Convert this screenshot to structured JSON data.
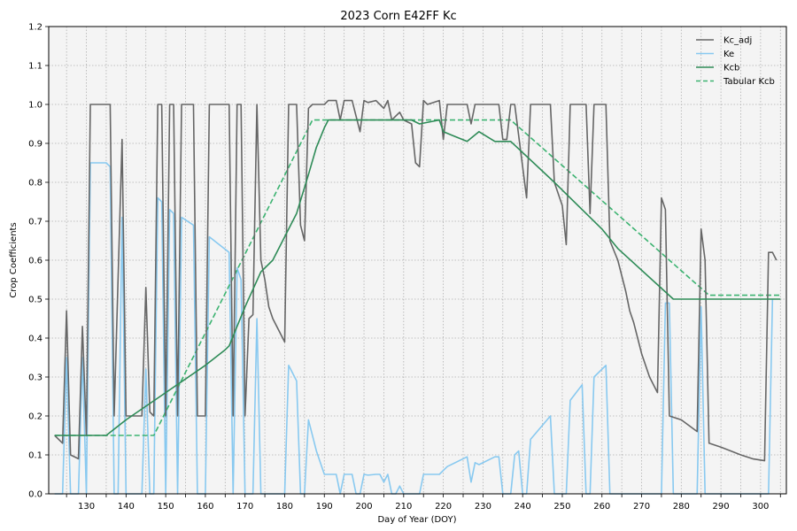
{
  "chart_data": {
    "type": "line",
    "title": "2023 Corn E42FF Kc",
    "xlabel": "Day of Year (DOY)",
    "ylabel": "Crop Coefficients",
    "xlim": [
      120.5,
      306.5
    ],
    "ylim": [
      0.0,
      1.2
    ],
    "xticks": [
      130,
      140,
      150,
      160,
      170,
      180,
      190,
      200,
      210,
      220,
      230,
      240,
      250,
      260,
      270,
      280,
      290,
      300
    ],
    "xticks_minor": [
      125,
      135,
      145,
      155,
      165,
      175,
      185,
      195,
      205,
      215,
      225,
      235,
      245,
      255,
      265,
      275,
      285,
      295,
      305
    ],
    "yticks": [
      0.0,
      0.1,
      0.2,
      0.3,
      0.4,
      0.5,
      0.6,
      0.7,
      0.8,
      0.9,
      1.0,
      1.1,
      1.2
    ],
    "ytick_labels": [
      "0.0",
      "0.1",
      "0.2",
      "0.3",
      "0.4",
      "0.5",
      "0.6",
      "0.7",
      "0.8",
      "0.9",
      "1.0",
      "1.1",
      "1.2"
    ],
    "grid": true,
    "legend_position": "top-right",
    "series": [
      {
        "name": "Kc_adj",
        "color": "#666666",
        "dash": "solid",
        "points": [
          [
            122,
            0.15
          ],
          [
            124,
            0.13
          ],
          [
            125,
            0.47
          ],
          [
            126,
            0.1
          ],
          [
            128,
            0.09
          ],
          [
            129,
            0.43
          ],
          [
            130,
            0.15
          ],
          [
            131,
            1.0
          ],
          [
            136,
            1.0
          ],
          [
            137,
            0.2
          ],
          [
            139,
            0.91
          ],
          [
            140,
            0.2
          ],
          [
            144,
            0.2
          ],
          [
            145,
            0.53
          ],
          [
            146,
            0.21
          ],
          [
            147,
            0.2
          ],
          [
            148,
            1.0
          ],
          [
            149,
            1.0
          ],
          [
            150,
            0.2
          ],
          [
            151,
            1.0
          ],
          [
            152,
            1.0
          ],
          [
            153,
            0.2
          ],
          [
            154,
            1.0
          ],
          [
            157,
            1.0
          ],
          [
            158,
            0.2
          ],
          [
            160,
            0.2
          ],
          [
            161,
            1.0
          ],
          [
            166,
            1.0
          ],
          [
            167,
            0.2
          ],
          [
            168,
            1.0
          ],
          [
            169,
            1.0
          ],
          [
            170,
            0.2
          ],
          [
            171,
            0.45
          ],
          [
            172,
            0.46
          ],
          [
            173,
            1.0
          ],
          [
            174,
            0.6
          ],
          [
            175,
            0.55
          ],
          [
            176,
            0.48
          ],
          [
            177,
            0.45
          ],
          [
            180,
            0.39
          ],
          [
            181,
            1.0
          ],
          [
            183,
            1.0
          ],
          [
            184,
            0.69
          ],
          [
            185,
            0.65
          ],
          [
            186,
            0.99
          ],
          [
            187,
            1.0
          ],
          [
            190,
            1.0
          ],
          [
            191,
            1.01
          ],
          [
            193,
            1.01
          ],
          [
            194,
            0.96
          ],
          [
            195,
            1.01
          ],
          [
            197,
            1.01
          ],
          [
            198,
            0.97
          ],
          [
            199,
            0.93
          ],
          [
            200,
            1.01
          ],
          [
            201,
            1.005
          ],
          [
            203,
            1.01
          ],
          [
            205,
            0.99
          ],
          [
            206,
            1.01
          ],
          [
            207,
            0.96
          ],
          [
            209,
            0.98
          ],
          [
            210,
            0.96
          ],
          [
            212,
            0.95
          ],
          [
            213,
            0.85
          ],
          [
            214,
            0.84
          ],
          [
            215,
            1.01
          ],
          [
            216,
            1.0
          ],
          [
            219,
            1.01
          ],
          [
            220,
            0.91
          ],
          [
            221,
            1.0
          ],
          [
            226,
            1.0
          ],
          [
            227,
            0.95
          ],
          [
            228,
            1.0
          ],
          [
            234,
            1.0
          ],
          [
            235,
            0.91
          ],
          [
            236,
            0.91
          ],
          [
            237,
            1.0
          ],
          [
            238,
            1.0
          ],
          [
            240,
            0.84
          ],
          [
            241,
            0.76
          ],
          [
            242,
            1.0
          ],
          [
            247,
            1.0
          ],
          [
            248,
            0.8
          ],
          [
            250,
            0.74
          ],
          [
            251,
            0.64
          ],
          [
            252,
            1.0
          ],
          [
            256,
            1.0
          ],
          [
            257,
            0.72
          ],
          [
            258,
            1.0
          ],
          [
            261,
            1.0
          ],
          [
            262,
            0.65
          ],
          [
            264,
            0.6
          ],
          [
            266,
            0.52
          ],
          [
            267,
            0.47
          ],
          [
            268,
            0.44
          ],
          [
            270,
            0.36
          ],
          [
            272,
            0.3
          ],
          [
            274,
            0.26
          ],
          [
            275,
            0.76
          ],
          [
            276,
            0.73
          ],
          [
            277,
            0.2
          ],
          [
            280,
            0.19
          ],
          [
            284,
            0.16
          ],
          [
            285,
            0.68
          ],
          [
            286,
            0.6
          ],
          [
            287,
            0.13
          ],
          [
            290,
            0.12
          ],
          [
            295,
            0.1
          ],
          [
            298,
            0.09
          ],
          [
            301,
            0.085
          ],
          [
            302,
            0.62
          ],
          [
            303,
            0.62
          ],
          [
            304,
            0.6
          ]
        ]
      },
      {
        "name": "Ke",
        "color": "#88c9f0",
        "dash": "solid",
        "points": [
          [
            122,
            0.0
          ],
          [
            124,
            0.0
          ],
          [
            125,
            0.35
          ],
          [
            126,
            0.0
          ],
          [
            128,
            0.0
          ],
          [
            129,
            0.35
          ],
          [
            130,
            0.0
          ],
          [
            131,
            0.85
          ],
          [
            135,
            0.85
          ],
          [
            136,
            0.84
          ],
          [
            137,
            0.0
          ],
          [
            138,
            0.0
          ],
          [
            139,
            0.71
          ],
          [
            140,
            0.0
          ],
          [
            144,
            0.0
          ],
          [
            145,
            0.32
          ],
          [
            146,
            0.0
          ],
          [
            147,
            0.0
          ],
          [
            148,
            0.76
          ],
          [
            149,
            0.75
          ],
          [
            150,
            0.0
          ],
          [
            151,
            0.73
          ],
          [
            152,
            0.72
          ],
          [
            153,
            0.0
          ],
          [
            154,
            0.71
          ],
          [
            157,
            0.69
          ],
          [
            158,
            0.0
          ],
          [
            160,
            0.0
          ],
          [
            161,
            0.66
          ],
          [
            166,
            0.62
          ],
          [
            167,
            0.0
          ],
          [
            168,
            0.58
          ],
          [
            169,
            0.55
          ],
          [
            170,
            0.0
          ],
          [
            172,
            0.0
          ],
          [
            173,
            0.45
          ],
          [
            174,
            0.0
          ],
          [
            180,
            0.0
          ],
          [
            181,
            0.33
          ],
          [
            183,
            0.29
          ],
          [
            184,
            0.0
          ],
          [
            185,
            0.0
          ],
          [
            186,
            0.19
          ],
          [
            188,
            0.11
          ],
          [
            190,
            0.05
          ],
          [
            193,
            0.05
          ],
          [
            194,
            0.0
          ],
          [
            195,
            0.05
          ],
          [
            197,
            0.05
          ],
          [
            198,
            0.0
          ],
          [
            199,
            0.0
          ],
          [
            200,
            0.05
          ],
          [
            201,
            0.048
          ],
          [
            203,
            0.05
          ],
          [
            204,
            0.05
          ],
          [
            205,
            0.03
          ],
          [
            206,
            0.05
          ],
          [
            207,
            0.0
          ],
          [
            208,
            0.0
          ],
          [
            209,
            0.02
          ],
          [
            210,
            0.0
          ],
          [
            214,
            0.0
          ],
          [
            215,
            0.05
          ],
          [
            219,
            0.05
          ],
          [
            220,
            0.06
          ],
          [
            221,
            0.07
          ],
          [
            226,
            0.095
          ],
          [
            227,
            0.03
          ],
          [
            228,
            0.08
          ],
          [
            229,
            0.075
          ],
          [
            233,
            0.095
          ],
          [
            234,
            0.095
          ],
          [
            235,
            0.0
          ],
          [
            237,
            0.0
          ],
          [
            238,
            0.1
          ],
          [
            239,
            0.11
          ],
          [
            240,
            0.0
          ],
          [
            241,
            0.0
          ],
          [
            242,
            0.14
          ],
          [
            247,
            0.2
          ],
          [
            248,
            0.0
          ],
          [
            251,
            0.0
          ],
          [
            252,
            0.24
          ],
          [
            255,
            0.28
          ],
          [
            256,
            0.0
          ],
          [
            257,
            0.0
          ],
          [
            258,
            0.3
          ],
          [
            261,
            0.33
          ],
          [
            262,
            0.0
          ],
          [
            275,
            0.0
          ],
          [
            276,
            0.49
          ],
          [
            277,
            0.49
          ],
          [
            278,
            0.0
          ],
          [
            284,
            0.0
          ],
          [
            285,
            0.48
          ],
          [
            286,
            0.0
          ],
          [
            302,
            0.0
          ],
          [
            303,
            0.5
          ]
        ]
      },
      {
        "name": "Kcb",
        "color": "#2e8b57",
        "dash": "solid",
        "points": [
          [
            122,
            0.15
          ],
          [
            135,
            0.15
          ],
          [
            140,
            0.19
          ],
          [
            150,
            0.26
          ],
          [
            160,
            0.33
          ],
          [
            165,
            0.37
          ],
          [
            166,
            0.38
          ],
          [
            170,
            0.48
          ],
          [
            174,
            0.57
          ],
          [
            177,
            0.6
          ],
          [
            183,
            0.72
          ],
          [
            186,
            0.82
          ],
          [
            188,
            0.89
          ],
          [
            190,
            0.94
          ],
          [
            191,
            0.96
          ],
          [
            212,
            0.96
          ],
          [
            214,
            0.95
          ],
          [
            219,
            0.96
          ],
          [
            220,
            0.93
          ],
          [
            226,
            0.905
          ],
          [
            229,
            0.93
          ],
          [
            233,
            0.905
          ],
          [
            237,
            0.905
          ],
          [
            248,
            0.8
          ],
          [
            260,
            0.68
          ],
          [
            264,
            0.63
          ],
          [
            278,
            0.5
          ],
          [
            305,
            0.5
          ]
        ]
      },
      {
        "name": "Tabular Kcb",
        "color": "#3cb371",
        "dash": "dashed",
        "points": [
          [
            122,
            0.15
          ],
          [
            147,
            0.15
          ],
          [
            187,
            0.96
          ],
          [
            237,
            0.96
          ],
          [
            287,
            0.51
          ],
          [
            305,
            0.51
          ]
        ]
      }
    ]
  }
}
